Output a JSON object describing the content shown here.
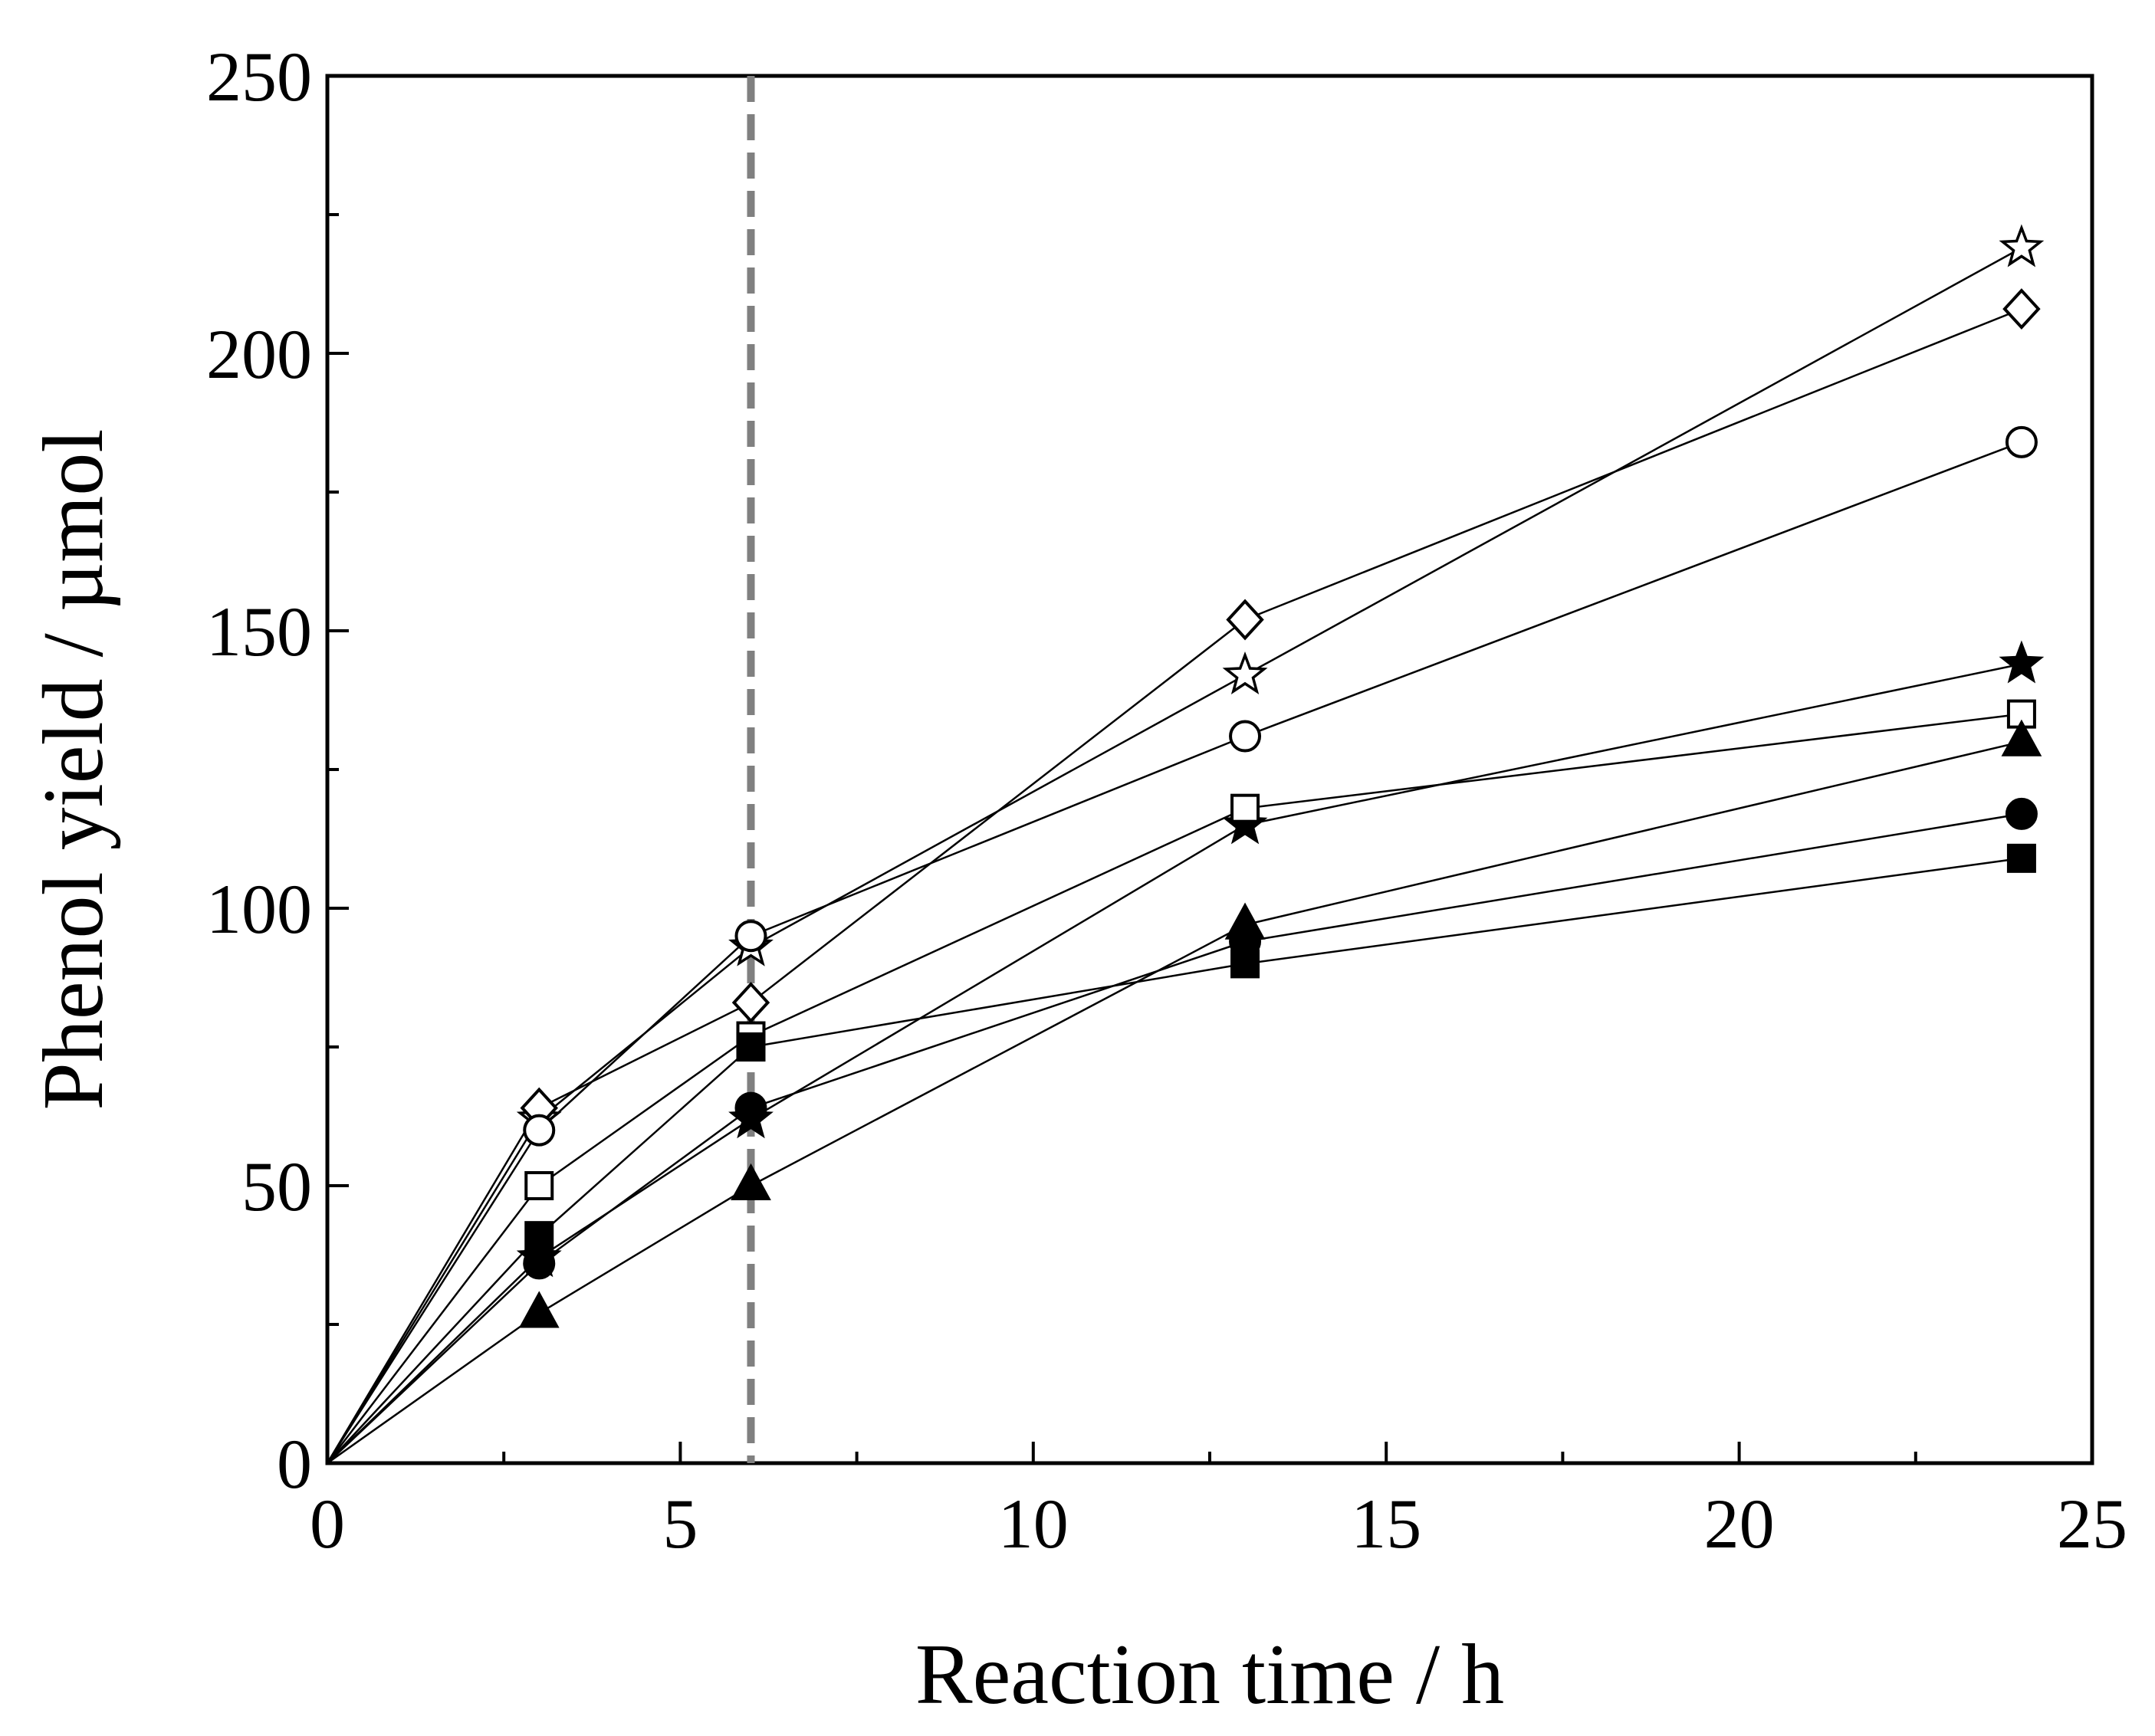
{
  "chart_data": {
    "type": "line",
    "title": "",
    "xlabel": "Reaction time / h",
    "ylabel": "Phenol yield / µmol",
    "xlim": [
      0,
      25
    ],
    "ylim": [
      0,
      250
    ],
    "x_major_ticks": [
      0,
      5,
      10,
      15,
      20,
      25
    ],
    "x_tick_labels": [
      "0",
      "5",
      "10",
      "15",
      "20",
      "25"
    ],
    "x_minor_ticks": [
      2.5,
      7.5,
      12.5,
      17.5,
      22.5
    ],
    "y_major_ticks": [
      0,
      50,
      100,
      150,
      200,
      250
    ],
    "y_tick_labels": [
      "0",
      "50",
      "100",
      "150",
      "200",
      "250"
    ],
    "y_minor_ticks": [
      25,
      75,
      125,
      175,
      225
    ],
    "grid": false,
    "legend": "none",
    "reference_line": {
      "orientation": "vertical",
      "x": 6,
      "style": "dashed",
      "color": "#808080"
    },
    "x": [
      0,
      3,
      6,
      13,
      24
    ],
    "series": [
      {
        "name": "open star",
        "marker": "star",
        "filled": false,
        "values": [
          0,
          62,
          93,
          142,
          219
        ]
      },
      {
        "name": "open diamond",
        "marker": "diamond",
        "filled": false,
        "values": [
          0,
          64,
          83,
          152,
          208
        ]
      },
      {
        "name": "open circle",
        "marker": "circle",
        "filled": false,
        "values": [
          0,
          60,
          95,
          131,
          184
        ]
      },
      {
        "name": "filled star",
        "marker": "star",
        "filled": true,
        "values": [
          0,
          37,
          62,
          115,
          144
        ]
      },
      {
        "name": "open square",
        "marker": "square",
        "filled": false,
        "values": [
          0,
          50,
          77,
          118,
          135
        ]
      },
      {
        "name": "filled triangle",
        "marker": "triangle",
        "filled": true,
        "values": [
          0,
          27,
          50,
          97,
          130
        ]
      },
      {
        "name": "filled circle",
        "marker": "circle",
        "filled": true,
        "values": [
          0,
          36,
          64,
          94,
          117
        ]
      },
      {
        "name": "filled square",
        "marker": "square",
        "filled": true,
        "values": [
          0,
          41,
          75,
          90,
          109
        ]
      }
    ]
  }
}
